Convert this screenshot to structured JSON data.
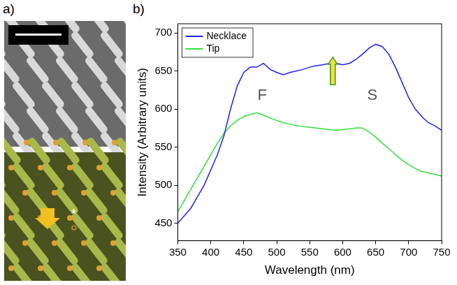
{
  "panel_labels": [
    "a)",
    "b)"
  ],
  "image_panel": {
    "marker_text": "*"
  },
  "chart_data": {
    "type": "line",
    "x_label": "Wavelength (nm)",
    "y_label": "Intensity (Arbitrary units)",
    "x": [
      350,
      360,
      370,
      380,
      390,
      400,
      410,
      420,
      430,
      440,
      450,
      460,
      470,
      480,
      490,
      500,
      510,
      520,
      530,
      540,
      550,
      560,
      570,
      580,
      590,
      600,
      610,
      620,
      630,
      640,
      650,
      660,
      670,
      680,
      690,
      700,
      710,
      720,
      730,
      740,
      750
    ],
    "series": [
      {
        "name": "Necklace",
        "color": "#1f1fff",
        "values": [
          450,
          460,
          470,
          485,
          500,
          520,
          540,
          565,
          600,
          630,
          648,
          655,
          655,
          660,
          652,
          648,
          645,
          648,
          650,
          652,
          655,
          657,
          658,
          660,
          660,
          658,
          660,
          665,
          672,
          680,
          685,
          682,
          672,
          655,
          635,
          615,
          600,
          590,
          582,
          578,
          572
        ]
      },
      {
        "name": "Tip",
        "color": "#33e03a",
        "values": [
          465,
          480,
          495,
          510,
          525,
          540,
          555,
          568,
          578,
          585,
          590,
          593,
          595,
          592,
          588,
          585,
          582,
          580,
          578,
          577,
          576,
          575,
          574,
          573,
          572,
          573,
          574,
          575,
          575,
          570,
          563,
          555,
          548,
          540,
          533,
          527,
          522,
          518,
          516,
          514,
          512
        ]
      }
    ],
    "xlim": [
      350,
      750
    ],
    "xticks": [
      350,
      400,
      450,
      500,
      550,
      600,
      650,
      700,
      750
    ],
    "ylim": [
      427,
      712
    ],
    "yticks": [
      450,
      500,
      550,
      600,
      650,
      700
    ],
    "grid": false,
    "legend": "upper left",
    "annotations": [
      {
        "text": "F",
        "x": 478,
        "y": 618
      },
      {
        "text": "S",
        "x": 645,
        "y": 618
      }
    ],
    "arrows": [
      {
        "x": 585,
        "y_from": 632,
        "y_to": 668
      }
    ]
  }
}
